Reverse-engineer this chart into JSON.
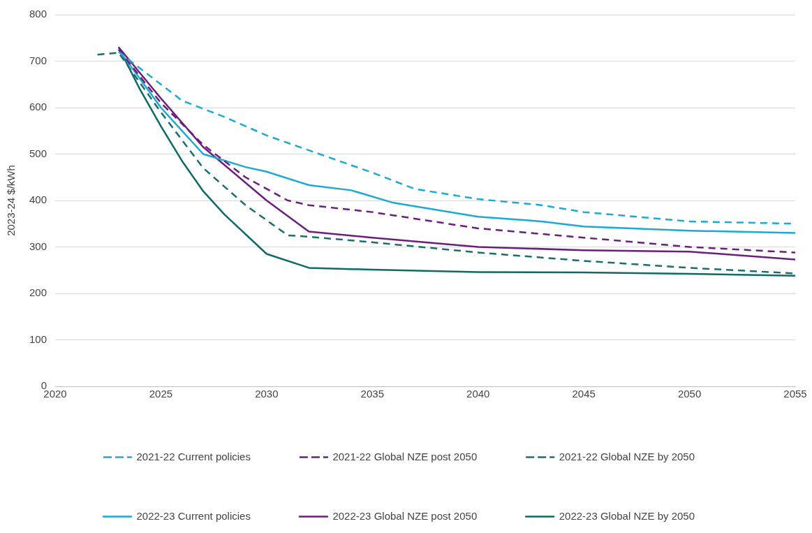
{
  "chart_data": {
    "type": "line",
    "ylabel": "2023-24 $/kWh",
    "xlim": [
      2020,
      2055
    ],
    "xticks": [
      2020,
      2025,
      2030,
      2035,
      2040,
      2045,
      2050,
      2055
    ],
    "ylim": [
      0,
      800
    ],
    "yticks": [
      0,
      100,
      200,
      300,
      400,
      500,
      600,
      700,
      800
    ],
    "grid": "y",
    "legend": "bottom",
    "marker": "none",
    "series": [
      {
        "name": "2021-22 Current policies",
        "color": "#1ba9d6",
        "line_style": "dashed",
        "x": [
          2023,
          2025,
          2026,
          2028,
          2030,
          2032,
          2035,
          2037,
          2040,
          2043,
          2045,
          2050,
          2055
        ],
        "values": [
          720,
          650,
          615,
          580,
          540,
          508,
          460,
          425,
          403,
          390,
          375,
          355,
          350
        ]
      },
      {
        "name": "2021-22 Global NZE post 2050",
        "color": "#6b1f7c",
        "line_style": "dashed",
        "x": [
          2023,
          2025,
          2027,
          2029,
          2031,
          2032,
          2035,
          2040,
          2045,
          2050,
          2055
        ],
        "values": [
          725,
          610,
          520,
          450,
          400,
          390,
          375,
          340,
          320,
          300,
          288
        ]
      },
      {
        "name": "2021-22 Global NZE by 2050",
        "color": "#1a6e6e",
        "line_style": "dashed",
        "x": [
          2022,
          2023,
          2025,
          2027,
          2029,
          2031,
          2032,
          2035,
          2040,
          2045,
          2050,
          2055
        ],
        "values": [
          714,
          718,
          590,
          470,
          390,
          325,
          322,
          310,
          288,
          270,
          255,
          243
        ]
      },
      {
        "name": "2022-23 Current policies",
        "color": "#1ba9d6",
        "line_style": "solid",
        "x": [
          2023,
          2025,
          2027,
          2029,
          2030,
          2032,
          2034,
          2036,
          2040,
          2043,
          2045,
          2050,
          2055
        ],
        "values": [
          725,
          600,
          500,
          472,
          462,
          433,
          422,
          395,
          365,
          355,
          344,
          335,
          330
        ]
      },
      {
        "name": "2022-23 Global NZE post 2050",
        "color": "#6b1f7c",
        "line_style": "solid",
        "x": [
          2023,
          2025,
          2027,
          2030,
          2032,
          2035,
          2040,
          2045,
          2050,
          2055
        ],
        "values": [
          730,
          620,
          515,
          400,
          333,
          320,
          300,
          293,
          290,
          273
        ]
      },
      {
        "name": "2022-23 Global NZE by 2050",
        "color": "#0e6a66",
        "line_style": "solid",
        "x": [
          2023,
          2024,
          2025,
          2026,
          2027,
          2028,
          2030,
          2032,
          2035,
          2040,
          2045,
          2050,
          2055
        ],
        "values": [
          730,
          640,
          560,
          485,
          420,
          370,
          285,
          255,
          251,
          246,
          245,
          242,
          238
        ]
      }
    ]
  }
}
